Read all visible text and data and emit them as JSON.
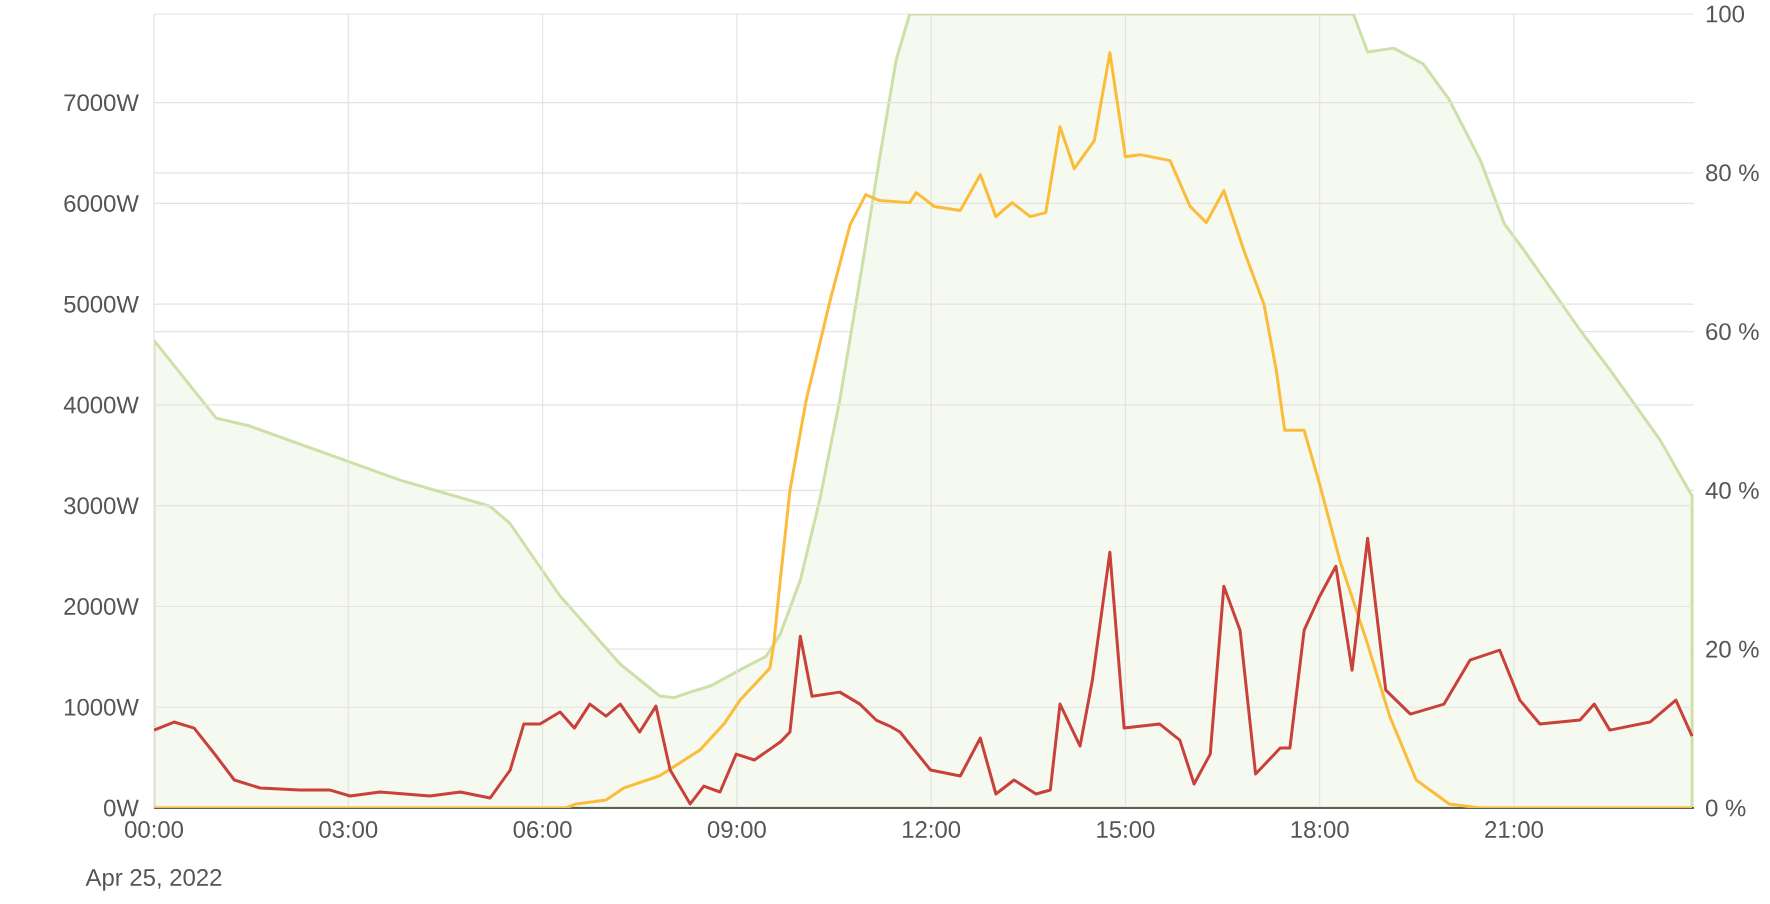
{
  "chart_data": {
    "type": "line",
    "marker": "none",
    "grid": true,
    "xlim": [
      0,
      23.78
    ],
    "ylim": [
      0,
      7880
    ],
    "y2lim": [
      0,
      100
    ],
    "xticks": [
      {
        "value": 0,
        "label": "00:00"
      },
      {
        "value": 3,
        "label": "03:00"
      },
      {
        "value": 6,
        "label": "06:00"
      },
      {
        "value": 9,
        "label": "09:00"
      },
      {
        "value": 12,
        "label": "12:00"
      },
      {
        "value": 15,
        "label": "15:00"
      },
      {
        "value": 18,
        "label": "18:00"
      },
      {
        "value": 21,
        "label": "21:00"
      }
    ],
    "yticks": [
      {
        "value": 0,
        "label": "0W"
      },
      {
        "value": 1000,
        "label": "1000W"
      },
      {
        "value": 2000,
        "label": "2000W"
      },
      {
        "value": 3000,
        "label": "3000W"
      },
      {
        "value": 4000,
        "label": "4000W"
      },
      {
        "value": 5000,
        "label": "5000W"
      },
      {
        "value": 6000,
        "label": "6000W"
      },
      {
        "value": 7000,
        "label": "7000W"
      }
    ],
    "y2ticks": [
      {
        "value": 0,
        "label": "0 %"
      },
      {
        "value": 20,
        "label": "20 %"
      },
      {
        "value": 40,
        "label": "40 %"
      },
      {
        "value": 60,
        "label": "60 %"
      },
      {
        "value": 80,
        "label": "80 %"
      },
      {
        "value": 100,
        "label": "100"
      }
    ],
    "annotations": [
      "Apr 25, 2022"
    ],
    "series": [
      {
        "type": "area",
        "axis": "y2",
        "color": "#cde0a8",
        "x": [
          0,
          0.96,
          1.48,
          3.8,
          5.19,
          5.5,
          6.27,
          7.2,
          7.81,
          8.03,
          8.28,
          8.6,
          9.05,
          9.45,
          9.67,
          9.98,
          10.28,
          10.59,
          10.9,
          11.2,
          11.46,
          11.67,
          18.52,
          18.74,
          19.14,
          19.6,
          20.0,
          20.48,
          20.85,
          21.15,
          22.02,
          22.48,
          23.26,
          23.75
        ],
        "values": [
          58.9,
          49.1,
          48.1,
          41.3,
          38.0,
          35.8,
          26.7,
          18.1,
          14.1,
          13.9,
          14.6,
          15.4,
          17.4,
          19.1,
          21.9,
          28.7,
          38.8,
          51.4,
          66.5,
          81.6,
          94.2,
          100,
          100,
          95.2,
          95.7,
          93.7,
          89.2,
          81.6,
          73.6,
          70.3,
          60.2,
          55.2,
          46.3,
          39.3
        ]
      },
      {
        "color": "#fbbc3a",
        "x": [
          0,
          6.36,
          6.52,
          6.98,
          7.26,
          7.81,
          8.43,
          8.8,
          9.05,
          9.51,
          9.57,
          9.67,
          9.82,
          10.07,
          10.44,
          10.75,
          10.99,
          11.2,
          11.67,
          11.77,
          12.05,
          12.45,
          12.76,
          13.0,
          13.25,
          13.53,
          13.77,
          13.99,
          14.21,
          14.52,
          14.76,
          15.0,
          15.23,
          15.69,
          16.0,
          16.25,
          16.52,
          16.83,
          17.14,
          17.33,
          17.46,
          17.76,
          18.0,
          18.31,
          18.72,
          19.08,
          19.49,
          20.0,
          20.48,
          23.75
        ],
        "values": [
          0,
          0,
          40,
          80,
          200,
          320,
          575,
          833,
          1071,
          1388,
          1626,
          2260,
          3153,
          4045,
          5037,
          5790,
          6088,
          6028,
          6008,
          6107,
          5969,
          5929,
          6286,
          5869,
          6008,
          5869,
          5909,
          6762,
          6345,
          6623,
          7496,
          6464,
          6484,
          6425,
          5969,
          5810,
          6127,
          5532,
          4997,
          4343,
          3748,
          3748,
          3212,
          2459,
          1666,
          912,
          278,
          40,
          0,
          0
        ]
      },
      {
        "color": "#c9413b",
        "x": [
          0,
          0.31,
          0.62,
          0.96,
          1.24,
          1.64,
          2.25,
          2.72,
          3.03,
          3.49,
          4.26,
          4.73,
          5.19,
          5.5,
          5.71,
          5.96,
          6.27,
          6.49,
          6.73,
          6.98,
          7.2,
          7.5,
          7.75,
          7.97,
          8.28,
          8.49,
          8.74,
          8.99,
          9.27,
          9.67,
          9.82,
          9.98,
          10.16,
          10.59,
          10.9,
          11.15,
          11.36,
          11.52,
          11.99,
          12.45,
          12.76,
          13.0,
          13.28,
          13.62,
          13.84,
          13.99,
          14.3,
          14.49,
          14.76,
          14.98,
          15.53,
          15.84,
          16.06,
          16.31,
          16.52,
          16.77,
          17.01,
          17.39,
          17.54,
          17.76,
          18.0,
          18.25,
          18.5,
          18.74,
          19.02,
          19.4,
          19.92,
          20.32,
          20.78,
          21.09,
          21.4,
          22.02,
          22.24,
          22.48,
          23.1,
          23.5,
          23.75
        ],
        "values": [
          773,
          853,
          793,
          516,
          278,
          198,
          178,
          178,
          119,
          159,
          119,
          159,
          99,
          377,
          833,
          833,
          952,
          793,
          1031,
          912,
          1031,
          754,
          1011,
          377,
          40,
          218,
          159,
          535,
          476,
          654,
          754,
          1705,
          1110,
          1150,
          1031,
          873,
          813,
          754,
          377,
          317,
          694,
          139,
          278,
          139,
          178,
          1031,
          615,
          1269,
          2538,
          793,
          833,
          674,
          238,
          535,
          2201,
          1765,
          337,
          595,
          595,
          1765,
          2102,
          2399,
          1368,
          2677,
          1170,
          932,
          1031,
          1467,
          1566,
          1071,
          833,
          873,
          1031,
          773,
          853,
          1071,
          714
        ]
      }
    ]
  }
}
